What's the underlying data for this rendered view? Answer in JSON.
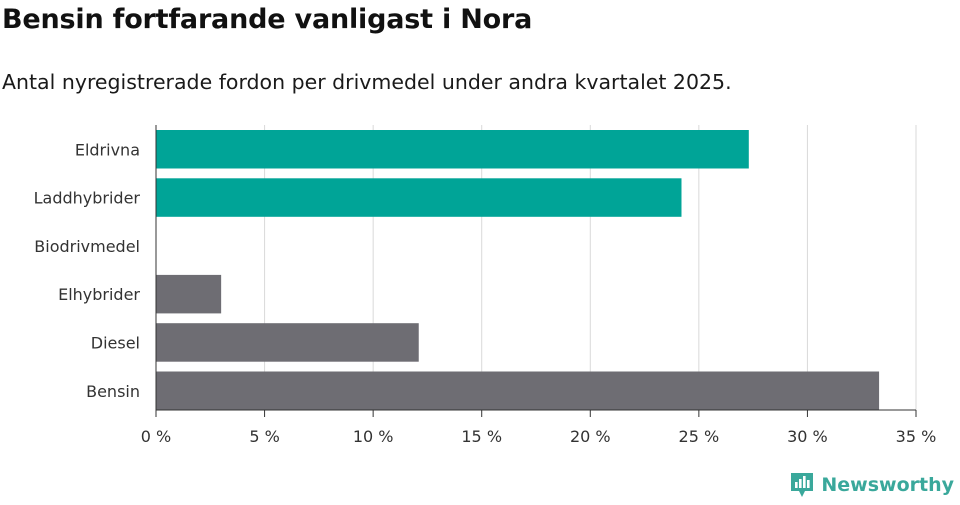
{
  "title": "Bensin fortfarande vanligast i Nora",
  "subtitle": "Antal nyregistrerade fordon per drivmedel under andra kvartalet 2025.",
  "brand": "Newsworthy",
  "colors": {
    "highlight": "#00a497",
    "default": "#6e6d73",
    "grid": "#d9d9d9",
    "brand": "#3aa89b"
  },
  "chart_data": {
    "type": "bar",
    "orientation": "horizontal",
    "categories": [
      "Eldrivna",
      "Laddhybrider",
      "Biodrivmedel",
      "Elhybrider",
      "Diesel",
      "Bensin"
    ],
    "values": [
      27.3,
      24.2,
      0,
      3.0,
      12.1,
      33.3
    ],
    "bar_colors": [
      "#00a497",
      "#00a497",
      "#00a497",
      "#6e6d73",
      "#6e6d73",
      "#6e6d73"
    ],
    "x_ticks": [
      "0 %",
      "5 %",
      "10 %",
      "15 %",
      "20 %",
      "25 %",
      "30 %",
      "35 %"
    ],
    "xlim": [
      0,
      35
    ],
    "grid": true
  }
}
